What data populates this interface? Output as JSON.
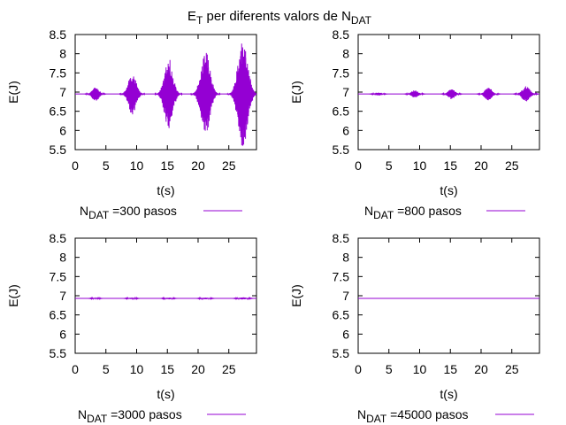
{
  "title": {
    "prefix": "E",
    "prefix_sub": "T",
    "middle": " per diferents valors de N",
    "suffix_sub": "DAT"
  },
  "colors": {
    "series": "#9400d3",
    "axis": "#000000"
  },
  "chart_data": [
    {
      "type": "line",
      "xlabel": "t(s)",
      "ylabel": "E(J)",
      "xlim": [
        0,
        29.5
      ],
      "ylim": [
        5.5,
        8.5
      ],
      "xticks": [
        "0",
        "5",
        "10",
        "15",
        "20",
        "25"
      ],
      "yticks": [
        "5.5",
        "6",
        "6.5",
        "7",
        "7.5",
        "8",
        "8.5"
      ],
      "baseline": 6.95,
      "legend": {
        "prefix": "N",
        "sub": "DAT",
        "suffix": " =300 pasos"
      },
      "bursts": [
        {
          "center": 3.3,
          "half_width": 1.1,
          "amplitude": 0.2
        },
        {
          "center": 9.3,
          "half_width": 1.3,
          "amplitude": 0.55
        },
        {
          "center": 15.2,
          "half_width": 1.4,
          "amplitude": 0.95
        },
        {
          "center": 21.2,
          "half_width": 1.5,
          "amplitude": 1.15
        },
        {
          "center": 27.3,
          "half_width": 1.6,
          "amplitude": 1.45
        }
      ]
    },
    {
      "type": "line",
      "xlabel": "t(s)",
      "ylabel": "E(J)",
      "xlim": [
        0,
        29.5
      ],
      "ylim": [
        5.5,
        8.5
      ],
      "xticks": [
        "0",
        "5",
        "10",
        "15",
        "20",
        "25"
      ],
      "yticks": [
        "5.5",
        "6",
        "6.5",
        "7",
        "7.5",
        "8",
        "8.5"
      ],
      "baseline": 6.95,
      "legend": {
        "prefix": "N",
        "sub": "DAT",
        "suffix": " =800 pasos"
      },
      "bursts": [
        {
          "center": 3.3,
          "half_width": 1.0,
          "amplitude": 0.04
        },
        {
          "center": 9.2,
          "half_width": 1.1,
          "amplitude": 0.1
        },
        {
          "center": 15.2,
          "half_width": 1.1,
          "amplitude": 0.14
        },
        {
          "center": 21.2,
          "half_width": 1.2,
          "amplitude": 0.17
        },
        {
          "center": 27.3,
          "half_width": 1.3,
          "amplitude": 0.2
        }
      ]
    },
    {
      "type": "line",
      "xlabel": "t(s)",
      "ylabel": "E(J)",
      "xlim": [
        0,
        29.5
      ],
      "ylim": [
        5.5,
        8.5
      ],
      "xticks": [
        "0",
        "5",
        "10",
        "15",
        "20",
        "25"
      ],
      "yticks": [
        "5.5",
        "6",
        "6.5",
        "7",
        "7.5",
        "8",
        "8.5"
      ],
      "baseline": 6.93,
      "legend": {
        "prefix": "N",
        "sub": "DAT",
        "suffix": " =3000 pasos"
      },
      "bursts": [
        {
          "center": 3.3,
          "half_width": 0.9,
          "amplitude": 0.015
        },
        {
          "center": 9.2,
          "half_width": 1.0,
          "amplitude": 0.02
        },
        {
          "center": 15.2,
          "half_width": 1.0,
          "amplitude": 0.025
        },
        {
          "center": 21.2,
          "half_width": 1.1,
          "amplitude": 0.025
        },
        {
          "center": 27.3,
          "half_width": 1.2,
          "amplitude": 0.03
        }
      ]
    },
    {
      "type": "line",
      "xlabel": "t(s)",
      "ylabel": "E(J)",
      "xlim": [
        0,
        29.5
      ],
      "ylim": [
        5.5,
        8.5
      ],
      "xticks": [
        "0",
        "5",
        "10",
        "15",
        "20",
        "25"
      ],
      "yticks": [
        "5.5",
        "6",
        "6.5",
        "7",
        "7.5",
        "8",
        "8.5"
      ],
      "baseline": 6.93,
      "legend": {
        "prefix": "N",
        "sub": "DAT",
        "suffix": " =45000 pasos"
      },
      "bursts": []
    }
  ]
}
